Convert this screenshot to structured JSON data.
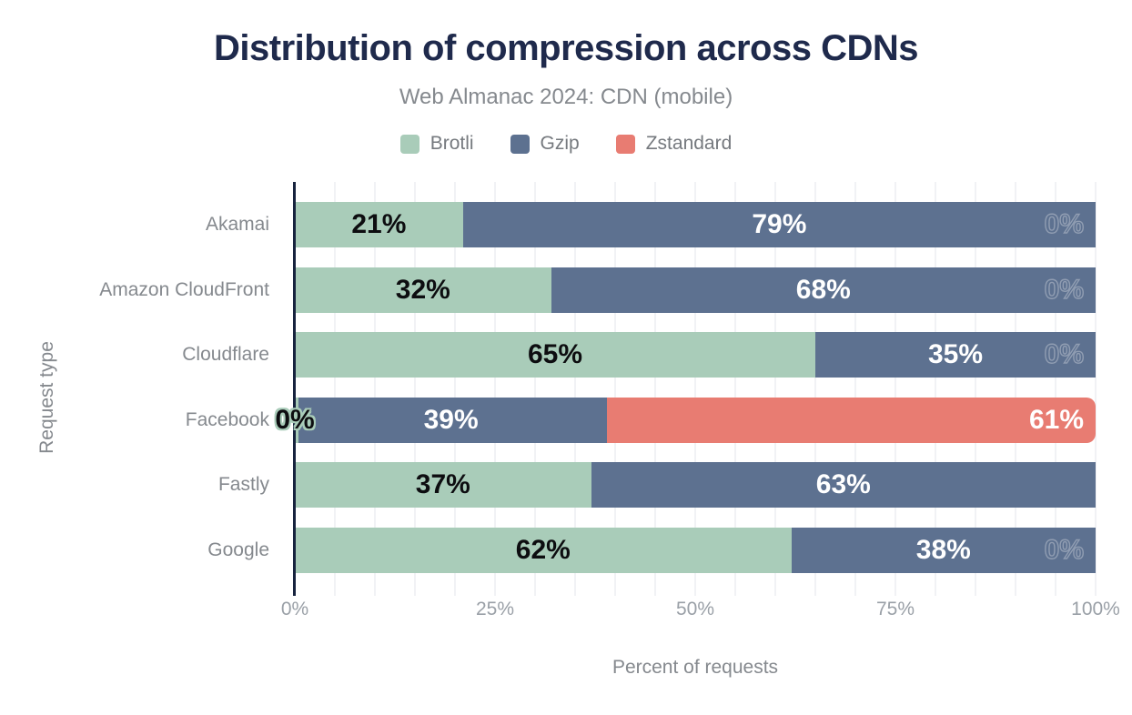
{
  "chart_data": {
    "type": "bar",
    "orientation": "horizontal",
    "stacked": true,
    "title": "Distribution of compression across CDNs",
    "subtitle": "Web Almanac 2024: CDN (mobile)",
    "xlabel": "Percent of requests",
    "ylabel": "Request type",
    "xlim": [
      0,
      100
    ],
    "x_ticks": [
      {
        "value": 0,
        "label": "0%"
      },
      {
        "value": 25,
        "label": "25%"
      },
      {
        "value": 50,
        "label": "50%"
      },
      {
        "value": 75,
        "label": "75%"
      },
      {
        "value": 100,
        "label": "100%"
      }
    ],
    "grid": "minor vertical gridlines every 5%",
    "legend_position": "top",
    "categories": [
      "Akamai",
      "Amazon CloudFront",
      "Cloudflare",
      "Facebook",
      "Fastly",
      "Google"
    ],
    "series": [
      {
        "name": "Brotli",
        "color": "#a9ccb9",
        "label_color": "#0d0d10",
        "values": [
          21,
          32,
          65,
          0,
          37,
          62
        ],
        "labels": [
          "21%",
          "32%",
          "65%",
          "0%",
          "37%",
          "62%"
        ]
      },
      {
        "name": "Gzip",
        "color": "#5d7190",
        "label_color": "#ffffff",
        "values": [
          79,
          68,
          35,
          39,
          63,
          38
        ],
        "labels": [
          "79%",
          "68%",
          "35%",
          "39%",
          "63%",
          "38%"
        ]
      },
      {
        "name": "Zstandard",
        "color": "#e87c72",
        "label_color": "#ffffff",
        "values": [
          0,
          0,
          0,
          61,
          0,
          0
        ],
        "labels": [
          "0%",
          "0%",
          "0%",
          "61%",
          "",
          "0%"
        ]
      }
    ],
    "colors": {
      "title": "#1f2a4c",
      "subtitle": "#85898e",
      "axis_text": "#9aa0a7",
      "axis_line": "#17233e",
      "gridline": "#f1f2f5"
    }
  }
}
